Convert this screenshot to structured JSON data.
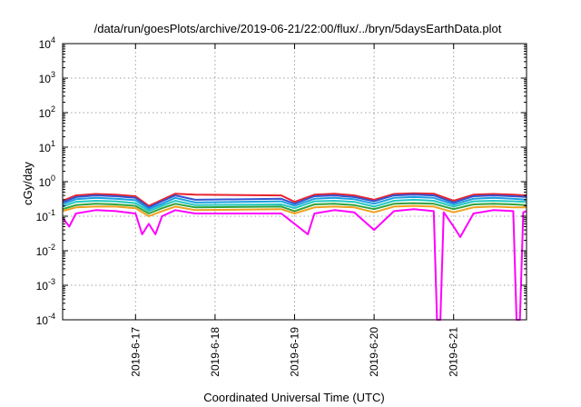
{
  "chart_data": {
    "type": "line",
    "title": "/data/run/goesPlots/archive/2019-06-21/22:00/flux/../bryn/5daysEarthData.plot",
    "xlabel": "Coordinated Universal Time (UTC)",
    "ylabel": "cGy/day",
    "yscale": "log",
    "ylim": [
      0.0001,
      10000
    ],
    "xlim": [
      "2019-06-16 02:00",
      "2019-06-21 22:00"
    ],
    "y_ticks": [
      {
        "value": 0.0001,
        "base": "10",
        "exp": "-4"
      },
      {
        "value": 0.001,
        "base": "10",
        "exp": "-3"
      },
      {
        "value": 0.01,
        "base": "10",
        "exp": "-2"
      },
      {
        "value": 0.1,
        "base": "10",
        "exp": "-1"
      },
      {
        "value": 1,
        "base": "10",
        "exp": "0"
      },
      {
        "value": 10,
        "base": "10",
        "exp": "1"
      },
      {
        "value": 100,
        "base": "10",
        "exp": "2"
      },
      {
        "value": 1000,
        "base": "10",
        "exp": "3"
      },
      {
        "value": 10000,
        "base": "10",
        "exp": "4"
      }
    ],
    "x_ticks": [
      {
        "value": "2019-06-17 00:00",
        "label": "2019-6-17"
      },
      {
        "value": "2019-06-18 00:00",
        "label": "2019-6-18"
      },
      {
        "value": "2019-06-19 00:00",
        "label": "2019-6-19"
      },
      {
        "value": "2019-06-20 00:00",
        "label": "2019-6-20"
      },
      {
        "value": "2019-06-21 00:00",
        "label": "2019-6-21"
      }
    ],
    "grid": true,
    "legend": "none",
    "data_gap": [
      "2019-06-17 18:00",
      "2019-06-18 20:00"
    ],
    "series": [
      {
        "color": "#e8232d",
        "points": [
          [
            "2019-06-16 02:00",
            0.28
          ],
          [
            "2019-06-16 06:00",
            0.4
          ],
          [
            "2019-06-16 12:00",
            0.44
          ],
          [
            "2019-06-16 18:00",
            0.42
          ],
          [
            "2019-06-17 00:00",
            0.38
          ],
          [
            "2019-06-17 04:00",
            0.2
          ],
          [
            "2019-06-17 08:00",
            0.3
          ],
          [
            "2019-06-17 12:00",
            0.45
          ],
          [
            "2019-06-17 18:00",
            0.42
          ],
          [
            "2019-06-18 20:00",
            0.4
          ],
          [
            "2019-06-19 00:00",
            0.26
          ],
          [
            "2019-06-19 06:00",
            0.42
          ],
          [
            "2019-06-19 12:00",
            0.45
          ],
          [
            "2019-06-19 18:00",
            0.4
          ],
          [
            "2019-06-20 00:00",
            0.3
          ],
          [
            "2019-06-20 06:00",
            0.44
          ],
          [
            "2019-06-20 12:00",
            0.46
          ],
          [
            "2019-06-20 18:00",
            0.45
          ],
          [
            "2019-06-21 00:00",
            0.28
          ],
          [
            "2019-06-21 06:00",
            0.42
          ],
          [
            "2019-06-21 12:00",
            0.44
          ],
          [
            "2019-06-21 18:00",
            0.42
          ],
          [
            "2019-06-21 22:00",
            0.4
          ]
        ]
      },
      {
        "color": "#3454d1",
        "points": [
          [
            "2019-06-16 02:00",
            0.25
          ],
          [
            "2019-06-16 06:00",
            0.36
          ],
          [
            "2019-06-16 12:00",
            0.4
          ],
          [
            "2019-06-16 18:00",
            0.38
          ],
          [
            "2019-06-17 00:00",
            0.34
          ],
          [
            "2019-06-17 04:00",
            0.18
          ],
          [
            "2019-06-17 08:00",
            0.27
          ],
          [
            "2019-06-17 12:00",
            0.4
          ],
          [
            "2019-06-17 18:00",
            0.3
          ],
          [
            "2019-06-18 20:00",
            0.32
          ],
          [
            "2019-06-19 00:00",
            0.23
          ],
          [
            "2019-06-19 06:00",
            0.38
          ],
          [
            "2019-06-19 12:00",
            0.4
          ],
          [
            "2019-06-19 18:00",
            0.36
          ],
          [
            "2019-06-20 00:00",
            0.27
          ],
          [
            "2019-06-20 06:00",
            0.4
          ],
          [
            "2019-06-20 12:00",
            0.42
          ],
          [
            "2019-06-20 18:00",
            0.4
          ],
          [
            "2019-06-21 00:00",
            0.25
          ],
          [
            "2019-06-21 06:00",
            0.38
          ],
          [
            "2019-06-21 12:00",
            0.4
          ],
          [
            "2019-06-21 18:00",
            0.38
          ],
          [
            "2019-06-21 22:00",
            0.36
          ]
        ]
      },
      {
        "color": "#1c9fe0",
        "points": [
          [
            "2019-06-16 02:00",
            0.22
          ],
          [
            "2019-06-16 06:00",
            0.31
          ],
          [
            "2019-06-16 12:00",
            0.34
          ],
          [
            "2019-06-16 18:00",
            0.32
          ],
          [
            "2019-06-17 00:00",
            0.29
          ],
          [
            "2019-06-17 04:00",
            0.16
          ],
          [
            "2019-06-17 08:00",
            0.23
          ],
          [
            "2019-06-17 12:00",
            0.34
          ],
          [
            "2019-06-17 18:00",
            0.25
          ],
          [
            "2019-06-18 20:00",
            0.27
          ],
          [
            "2019-06-19 00:00",
            0.2
          ],
          [
            "2019-06-19 06:00",
            0.32
          ],
          [
            "2019-06-19 12:00",
            0.34
          ],
          [
            "2019-06-19 18:00",
            0.31
          ],
          [
            "2019-06-20 00:00",
            0.23
          ],
          [
            "2019-06-20 06:00",
            0.34
          ],
          [
            "2019-06-20 12:00",
            0.36
          ],
          [
            "2019-06-20 18:00",
            0.34
          ],
          [
            "2019-06-21 00:00",
            0.22
          ],
          [
            "2019-06-21 06:00",
            0.32
          ],
          [
            "2019-06-21 12:00",
            0.34
          ],
          [
            "2019-06-21 18:00",
            0.32
          ],
          [
            "2019-06-21 22:00",
            0.3
          ]
        ]
      },
      {
        "color": "#22c7c0",
        "points": [
          [
            "2019-06-16 02:00",
            0.19
          ],
          [
            "2019-06-16 06:00",
            0.26
          ],
          [
            "2019-06-16 12:00",
            0.28
          ],
          [
            "2019-06-16 18:00",
            0.27
          ],
          [
            "2019-06-17 00:00",
            0.24
          ],
          [
            "2019-06-17 04:00",
            0.14
          ],
          [
            "2019-06-17 08:00",
            0.2
          ],
          [
            "2019-06-17 12:00",
            0.28
          ],
          [
            "2019-06-17 18:00",
            0.21
          ],
          [
            "2019-06-18 20:00",
            0.22
          ],
          [
            "2019-06-19 00:00",
            0.17
          ],
          [
            "2019-06-19 06:00",
            0.27
          ],
          [
            "2019-06-19 12:00",
            0.28
          ],
          [
            "2019-06-19 18:00",
            0.26
          ],
          [
            "2019-06-20 00:00",
            0.19
          ],
          [
            "2019-06-20 06:00",
            0.28
          ],
          [
            "2019-06-20 12:00",
            0.3
          ],
          [
            "2019-06-20 18:00",
            0.28
          ],
          [
            "2019-06-21 00:00",
            0.19
          ],
          [
            "2019-06-21 06:00",
            0.27
          ],
          [
            "2019-06-21 12:00",
            0.28
          ],
          [
            "2019-06-21 18:00",
            0.27
          ],
          [
            "2019-06-21 22:00",
            0.26
          ]
        ]
      },
      {
        "color": "#2fa33a",
        "points": [
          [
            "2019-06-16 02:00",
            0.16
          ],
          [
            "2019-06-16 06:00",
            0.21
          ],
          [
            "2019-06-16 12:00",
            0.23
          ],
          [
            "2019-06-16 18:00",
            0.22
          ],
          [
            "2019-06-17 00:00",
            0.2
          ],
          [
            "2019-06-17 04:00",
            0.12
          ],
          [
            "2019-06-17 08:00",
            0.17
          ],
          [
            "2019-06-17 12:00",
            0.23
          ],
          [
            "2019-06-17 18:00",
            0.18
          ],
          [
            "2019-06-18 20:00",
            0.19
          ],
          [
            "2019-06-19 00:00",
            0.14
          ],
          [
            "2019-06-19 06:00",
            0.22
          ],
          [
            "2019-06-19 12:00",
            0.23
          ],
          [
            "2019-06-19 18:00",
            0.21
          ],
          [
            "2019-06-20 00:00",
            0.16
          ],
          [
            "2019-06-20 06:00",
            0.23
          ],
          [
            "2019-06-20 12:00",
            0.24
          ],
          [
            "2019-06-20 18:00",
            0.23
          ],
          [
            "2019-06-21 00:00",
            0.16
          ],
          [
            "2019-06-21 06:00",
            0.22
          ],
          [
            "2019-06-21 12:00",
            0.23
          ],
          [
            "2019-06-21 18:00",
            0.22
          ],
          [
            "2019-06-21 22:00",
            0.21
          ]
        ]
      },
      {
        "color": "#f0a020",
        "points": [
          [
            "2019-06-16 02:00",
            0.14
          ],
          [
            "2019-06-16 06:00",
            0.18
          ],
          [
            "2019-06-16 12:00",
            0.19
          ],
          [
            "2019-06-16 18:00",
            0.19
          ],
          [
            "2019-06-17 00:00",
            0.17
          ],
          [
            "2019-06-17 04:00",
            0.1
          ],
          [
            "2019-06-17 08:00",
            0.14
          ],
          [
            "2019-06-17 12:00",
            0.19
          ],
          [
            "2019-06-17 18:00",
            0.15
          ],
          [
            "2019-06-18 20:00",
            0.16
          ],
          [
            "2019-06-19 00:00",
            0.12
          ],
          [
            "2019-06-19 06:00",
            0.18
          ],
          [
            "2019-06-19 12:00",
            0.19
          ],
          [
            "2019-06-19 18:00",
            0.18
          ],
          [
            "2019-06-20 00:00",
            0.13
          ],
          [
            "2019-06-20 06:00",
            0.19
          ],
          [
            "2019-06-20 12:00",
            0.2
          ],
          [
            "2019-06-20 18:00",
            0.19
          ],
          [
            "2019-06-21 00:00",
            0.13
          ],
          [
            "2019-06-21 06:00",
            0.18
          ],
          [
            "2019-06-21 12:00",
            0.19
          ],
          [
            "2019-06-21 18:00",
            0.18
          ],
          [
            "2019-06-21 22:00",
            0.18
          ]
        ]
      },
      {
        "color": "#ff00ff",
        "points": [
          [
            "2019-06-16 02:00",
            0.09
          ],
          [
            "2019-06-16 04:00",
            0.05
          ],
          [
            "2019-06-16 06:00",
            0.12
          ],
          [
            "2019-06-16 12:00",
            0.15
          ],
          [
            "2019-06-16 18:00",
            0.14
          ],
          [
            "2019-06-17 00:00",
            0.12
          ],
          [
            "2019-06-17 02:00",
            0.03
          ],
          [
            "2019-06-17 04:00",
            0.06
          ],
          [
            "2019-06-17 06:00",
            0.03
          ],
          [
            "2019-06-17 08:00",
            0.1
          ],
          [
            "2019-06-17 12:00",
            0.15
          ],
          [
            "2019-06-17 18:00",
            0.12
          ],
          [
            "2019-06-18 20:00",
            0.12
          ],
          [
            "2019-06-19 00:00",
            0.06
          ],
          [
            "2019-06-19 04:00",
            0.03
          ],
          [
            "2019-06-19 06:00",
            0.12
          ],
          [
            "2019-06-19 12:00",
            0.15
          ],
          [
            "2019-06-19 18:00",
            0.13
          ],
          [
            "2019-06-20 00:00",
            0.04
          ],
          [
            "2019-06-20 06:00",
            0.14
          ],
          [
            "2019-06-20 12:00",
            0.16
          ],
          [
            "2019-06-20 18:00",
            0.14
          ],
          [
            "2019-06-20 19:00",
            0.0001
          ],
          [
            "2019-06-20 20:00",
            0.0001
          ],
          [
            "2019-06-20 21:00",
            0.13
          ],
          [
            "2019-06-21 00:00",
            0.05
          ],
          [
            "2019-06-21 02:00",
            0.025
          ],
          [
            "2019-06-21 06:00",
            0.12
          ],
          [
            "2019-06-21 12:00",
            0.15
          ],
          [
            "2019-06-21 18:00",
            0.14
          ],
          [
            "2019-06-21 19:00",
            0.0001
          ],
          [
            "2019-06-21 20:00",
            0.0001
          ],
          [
            "2019-06-21 21:00",
            0.13
          ],
          [
            "2019-06-21 22:00",
            0.14
          ]
        ]
      }
    ]
  }
}
